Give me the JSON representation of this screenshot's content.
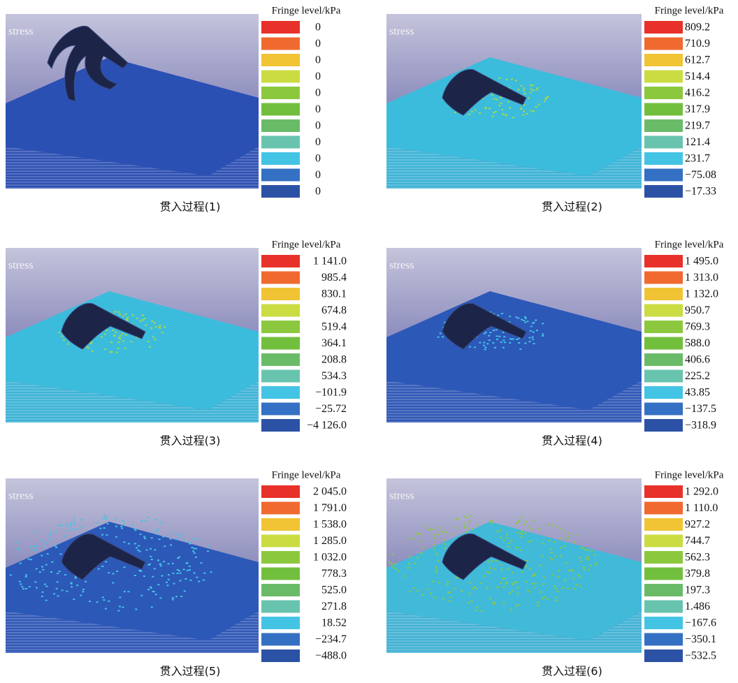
{
  "panels": [
    {
      "stress_label": "stress",
      "legend_title": "Fringe level/kPa",
      "legend_values": [
        "0",
        "0",
        "0",
        "0",
        "0",
        "0",
        "0",
        "0",
        "0",
        "0",
        "0"
      ],
      "caption": "贯入过程(1)"
    },
    {
      "stress_label": "stress",
      "legend_title": "Fringe level/kPa",
      "legend_values": [
        "809.2",
        "710.9",
        "612.7",
        "514.4",
        "416.2",
        "317.9",
        "219.7",
        "121.4",
        "231.7",
        "−75.08",
        "−17.33"
      ],
      "caption": "贯入过程(2)"
    },
    {
      "stress_label": "stress",
      "legend_title": "Fringe level/kPa",
      "legend_values": [
        "1 141.0",
        "985.4",
        "830.1",
        "674.8",
        "519.4",
        "364.1",
        "208.8",
        "534.3",
        "−101.9",
        "−25.72",
        "−4 126.0"
      ],
      "caption": "贯入过程(3)"
    },
    {
      "stress_label": "stress",
      "legend_title": "Fringe level/kPa",
      "legend_values": [
        "1 495.0",
        "1 313.0",
        "1 132.0",
        "950.7",
        "769.3",
        "588.0",
        "406.6",
        "225.2",
        "43.85",
        "−137.5",
        "−318.9"
      ],
      "caption": "贯入过程(4)"
    },
    {
      "stress_label": "stress",
      "legend_title": "Fringe level/kPa",
      "legend_values": [
        "2 045.0",
        "1 791.0",
        "1 538.0",
        "1 285.0",
        "1 032.0",
        "778.3",
        "525.0",
        "271.8",
        "18.52",
        "−234.7",
        "−488.0"
      ],
      "caption": "贯入过程(5)"
    },
    {
      "stress_label": "stress",
      "legend_title": "Fringe level/kPa",
      "legend_values": [
        "1 292.0",
        "1 110.0",
        "927.2",
        "744.7",
        "562.3",
        "379.8",
        "197.3",
        "1.486",
        "−167.6",
        "−350.1",
        "−532.5"
      ],
      "caption": "贯入过程(6)"
    }
  ]
}
